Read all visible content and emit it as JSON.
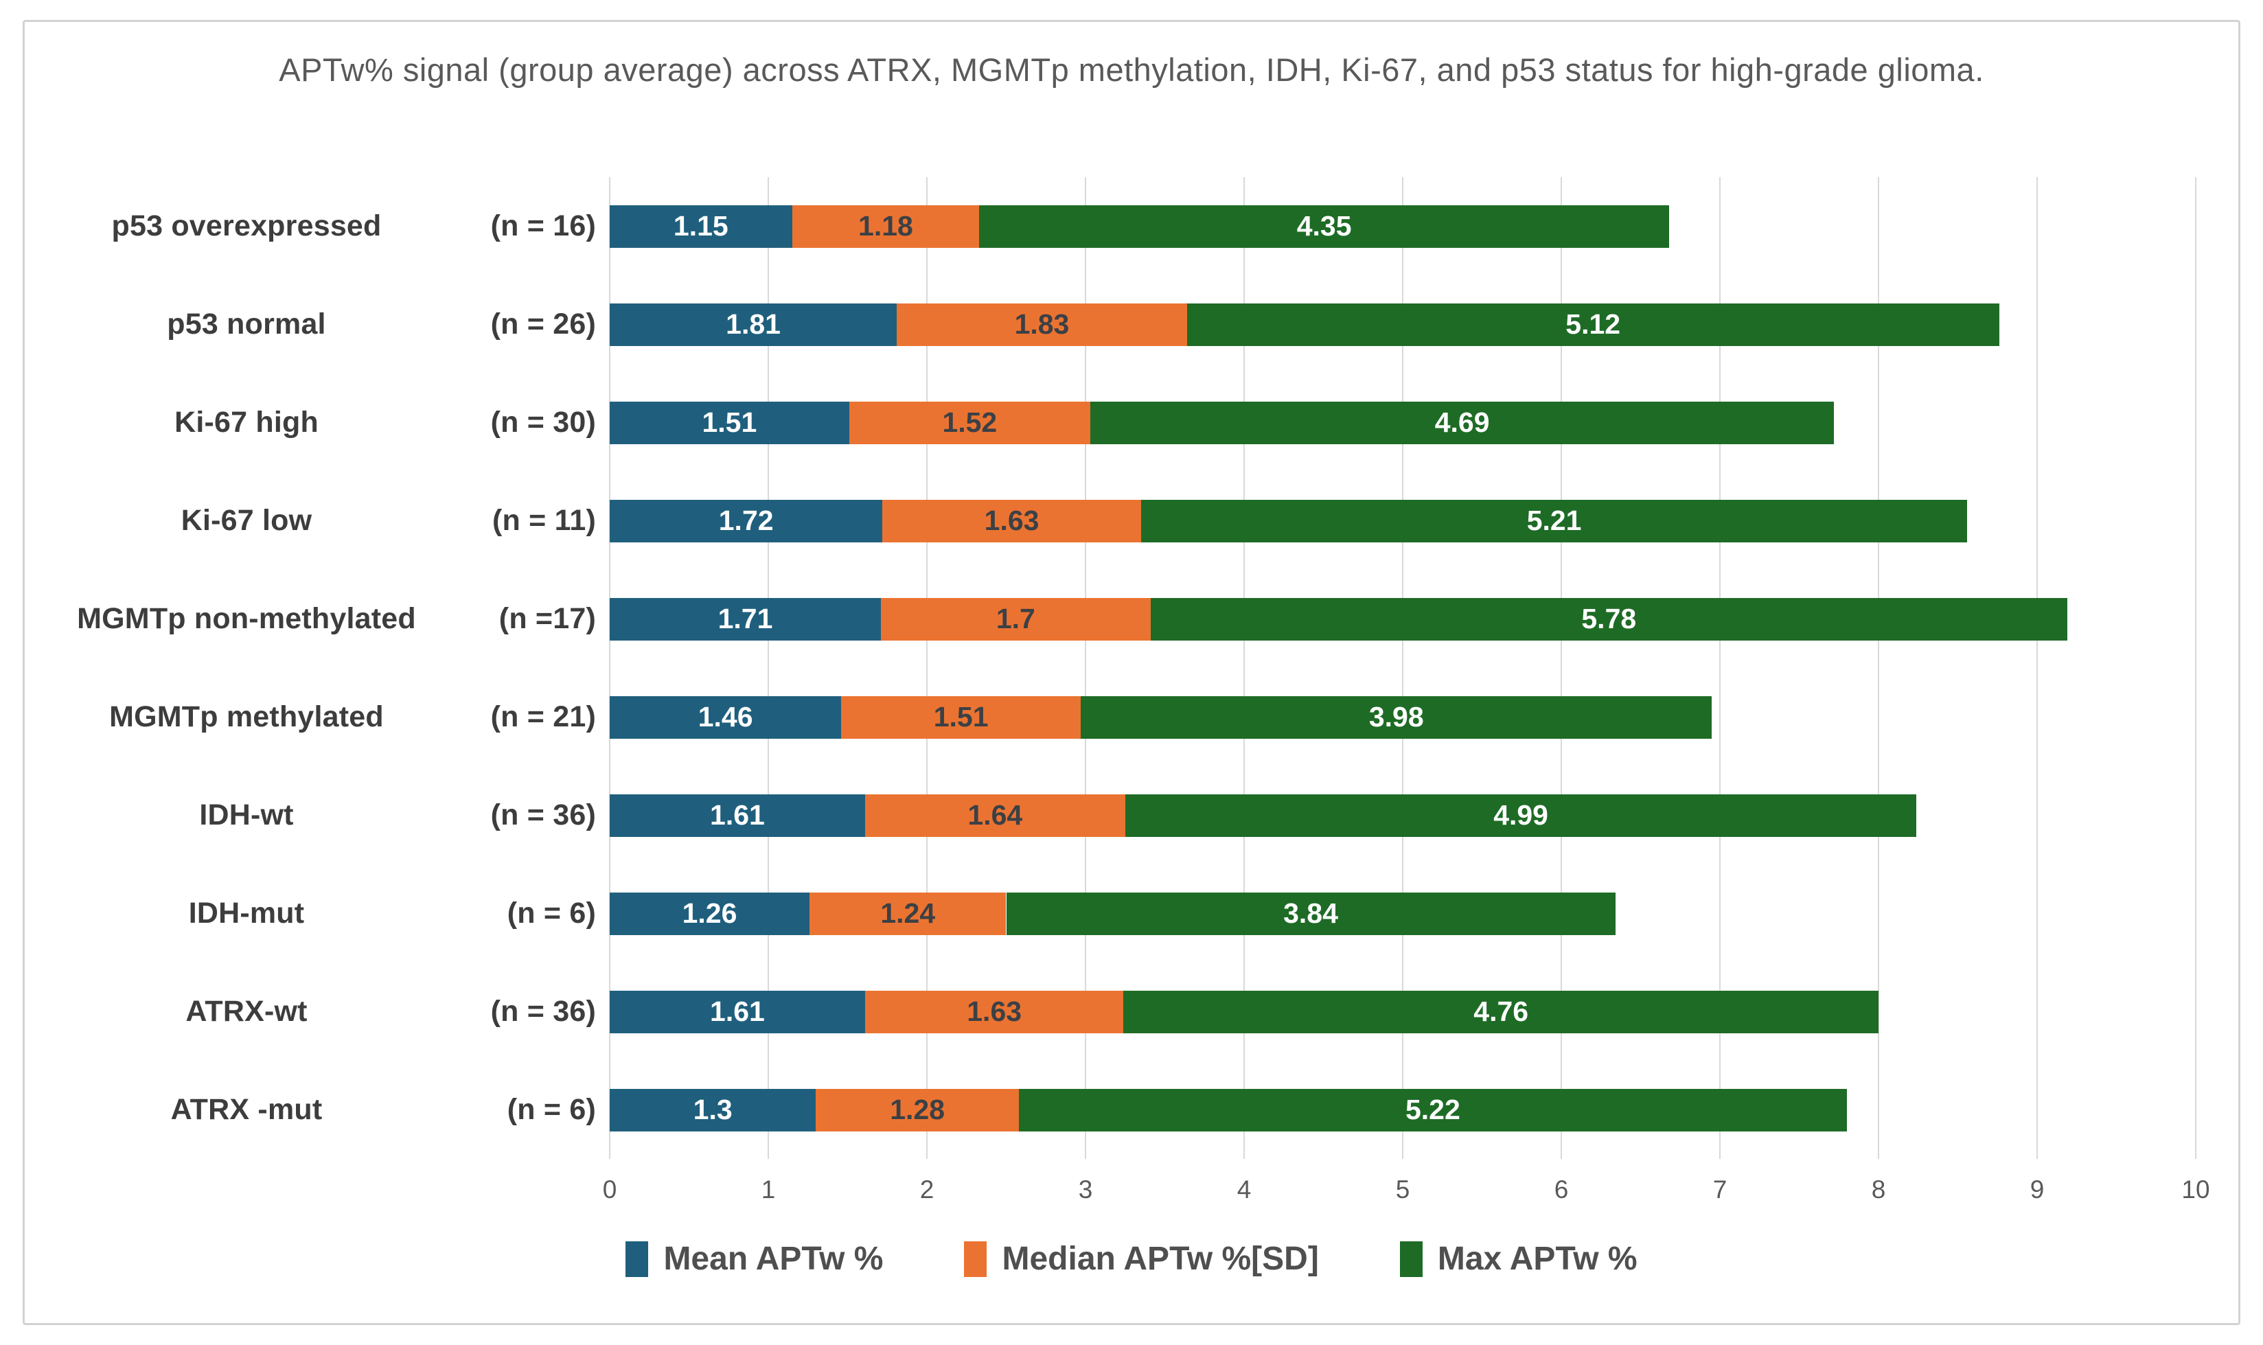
{
  "chart_data": {
    "type": "bar",
    "orientation": "horizontal",
    "stacked": true,
    "title": "APTw% signal (group average) across ATRX, MGMTp methylation, IDH, Ki-67, and p53 status for high-grade glioma.",
    "categories": [
      "p53 overexpressed",
      "p53 normal",
      "Ki-67 high",
      "Ki-67 low",
      "MGMTp non-methylated",
      "MGMTp methylated",
      "IDH-wt",
      "IDH-mut",
      "ATRX-wt",
      "ATRX -mut"
    ],
    "counts": [
      "(n = 16)",
      "(n = 26)",
      "(n = 30)",
      "(n = 11)",
      "(n =17)",
      "(n = 21)",
      "(n = 36)",
      "(n = 6)",
      "(n = 36)",
      "(n = 6)"
    ],
    "series": [
      {
        "name": "Mean APTw %",
        "color": "#1f5f7d",
        "label_color": "#ffffff",
        "values": [
          1.15,
          1.81,
          1.51,
          1.72,
          1.71,
          1.46,
          1.61,
          1.26,
          1.61,
          1.3
        ]
      },
      {
        "name": "Median APTw %[SD]",
        "color": "#eb7331",
        "label_color": "#3b4045",
        "values": [
          1.18,
          1.83,
          1.52,
          1.63,
          1.7,
          1.51,
          1.64,
          1.24,
          1.63,
          1.28
        ]
      },
      {
        "name": "Max APTw %",
        "color": "#1e6b26",
        "label_color": "#ffffff",
        "values": [
          4.35,
          5.12,
          4.69,
          5.21,
          5.78,
          3.98,
          4.99,
          3.84,
          4.76,
          5.22
        ]
      }
    ],
    "x_axis": {
      "min": 0,
      "max": 10,
      "ticks": [
        "0",
        "1",
        "2",
        "3",
        "4",
        "5",
        "6",
        "7",
        "8",
        "9",
        "10"
      ]
    },
    "grid": true,
    "legend_position": "bottom"
  }
}
